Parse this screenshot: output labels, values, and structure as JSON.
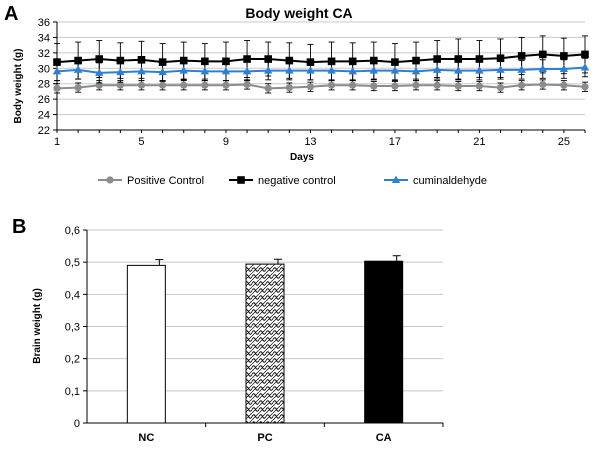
{
  "panels": {
    "a": "A",
    "b": "B"
  },
  "colors": {
    "positive_control": "#8c8c8c",
    "negative_control": "#000000",
    "cuminaldehyde": "#2e7fd0",
    "grid": "#c8c8c8",
    "nc_bar": "#ffffff",
    "pc_bar_pattern": "#000000",
    "ca_bar": "#000000"
  },
  "chart_data": [
    {
      "type": "line",
      "title": "Body weight CA",
      "xlabel": "Days",
      "ylabel": "Body weight (g)",
      "xlim": [
        1,
        26
      ],
      "ylim": [
        22,
        36
      ],
      "x_ticks": [
        "1",
        "5",
        "9",
        "13",
        "17",
        "21",
        "25"
      ],
      "y_ticks": [
        "22",
        "24",
        "26",
        "28",
        "30",
        "32",
        "34",
        "36"
      ],
      "grid": "horizontal",
      "legend_position": "bottom",
      "x": [
        1,
        2,
        3,
        4,
        5,
        6,
        7,
        8,
        9,
        10,
        11,
        12,
        13,
        14,
        15,
        16,
        17,
        18,
        19,
        20,
        21,
        22,
        23,
        24,
        25,
        26
      ],
      "series": [
        {
          "name": "Positive Control",
          "key": "positive_control",
          "marker": "circle",
          "values": [
            27.4,
            27.5,
            27.8,
            27.8,
            27.8,
            27.8,
            27.8,
            27.8,
            27.8,
            27.9,
            27.4,
            27.5,
            27.6,
            27.8,
            27.8,
            27.7,
            27.7,
            27.8,
            27.8,
            27.7,
            27.7,
            27.5,
            27.8,
            27.9,
            27.8,
            27.6
          ],
          "error": [
            0.6,
            0.6,
            0.6,
            0.6,
            0.6,
            0.6,
            0.6,
            0.6,
            0.6,
            0.6,
            0.6,
            0.6,
            0.6,
            0.6,
            0.6,
            0.6,
            0.6,
            0.6,
            0.6,
            0.6,
            0.6,
            0.6,
            0.6,
            0.6,
            0.6,
            0.6
          ]
        },
        {
          "name": "negative control",
          "key": "negative_control",
          "marker": "square",
          "values": [
            30.8,
            31.0,
            31.2,
            31.0,
            31.1,
            30.8,
            31.0,
            30.9,
            30.9,
            31.2,
            31.2,
            31.0,
            30.8,
            30.9,
            30.9,
            31.0,
            30.8,
            31.0,
            31.2,
            31.2,
            31.2,
            31.3,
            31.6,
            31.8,
            31.6,
            31.8
          ],
          "error": [
            2.4,
            2.4,
            2.4,
            2.3,
            2.4,
            2.4,
            2.4,
            2.3,
            2.5,
            2.4,
            2.2,
            2.3,
            2.3,
            2.5,
            2.4,
            2.4,
            2.4,
            2.4,
            2.4,
            2.6,
            2.4,
            2.5,
            2.4,
            2.4,
            2.3,
            2.4
          ]
        },
        {
          "name": "cuminaldehyde",
          "key": "cuminaldehyde",
          "marker": "triangle",
          "values": [
            29.6,
            29.8,
            29.4,
            29.5,
            29.6,
            29.5,
            29.7,
            29.6,
            29.6,
            29.6,
            29.7,
            29.7,
            29.7,
            29.7,
            29.6,
            29.7,
            29.7,
            29.6,
            29.8,
            29.7,
            29.7,
            29.8,
            29.8,
            29.9,
            29.9,
            30.1
          ],
          "error": [
            1.2,
            1.2,
            1.3,
            1.3,
            1.2,
            1.2,
            1.2,
            1.2,
            1.2,
            1.2,
            1.2,
            1.2,
            1.2,
            1.2,
            1.2,
            1.2,
            1.2,
            1.2,
            1.2,
            1.2,
            1.2,
            1.2,
            1.2,
            1.2,
            1.2,
            1.2
          ]
        }
      ]
    },
    {
      "type": "bar",
      "title": "",
      "xlabel": "",
      "ylabel": "Brain weight (g)",
      "ylim": [
        0,
        0.6
      ],
      "y_ticks": [
        "0",
        "0,1",
        "0,2",
        "0,3",
        "0,4",
        "0,5",
        "0,6"
      ],
      "grid": "horizontal",
      "categories": [
        "NC",
        "PC",
        "CA"
      ],
      "values": [
        0.49,
        0.494,
        0.503
      ],
      "error": [
        0.018,
        0.015,
        0.017
      ],
      "fills": [
        "white",
        "pattern",
        "black"
      ]
    }
  ]
}
